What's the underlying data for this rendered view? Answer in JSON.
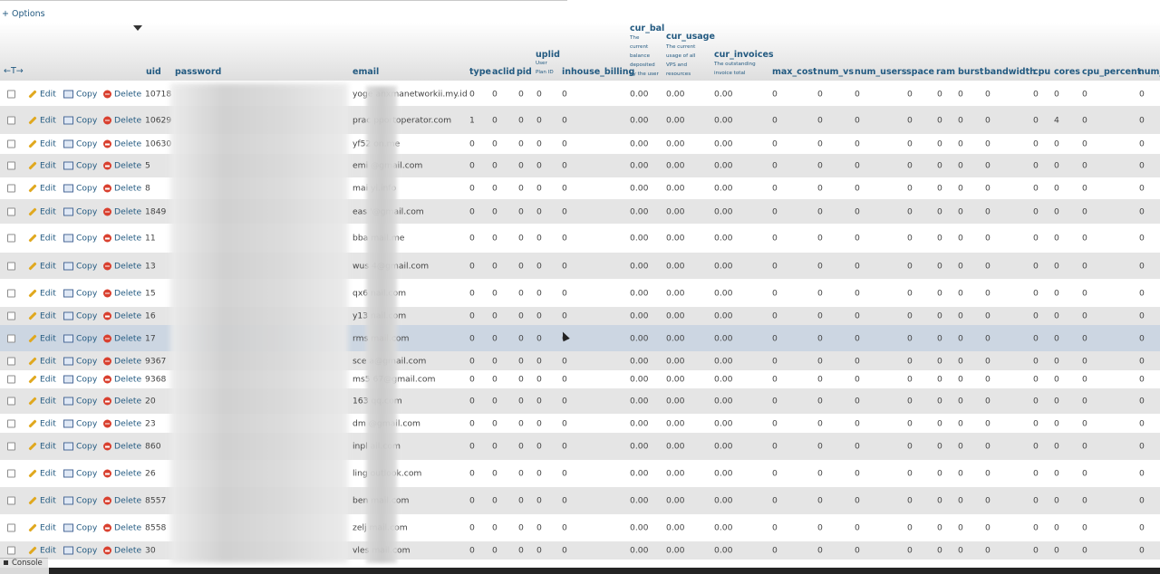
{
  "options_link": "+ Options",
  "headers": {
    "uid": "uid",
    "password": "password",
    "email": "email",
    "type": "type",
    "aclid": "aclid",
    "pid": "pid",
    "uplid": "uplid",
    "uplid_sub": [
      "User",
      "Plan ID"
    ],
    "inhouse_billing": "inhouse_billing",
    "cur_bal": "cur_bal",
    "cur_bal_sub": [
      "The",
      "current",
      "balance",
      "deposited",
      "by the user"
    ],
    "cur_usage": "cur_usage",
    "cur_usage_sub": [
      "The current",
      "usage of all",
      "VPS and",
      "resources"
    ],
    "cur_invoices": "cur_invoices",
    "cur_invoices_sub": [
      "The outstanding",
      "invoice total"
    ],
    "max_cost": "max_cost",
    "num_vs": "num_vs",
    "num_users": "num_users",
    "space": "space",
    "ram": "ram",
    "burst": "burst",
    "bandwidth": "bandwidth",
    "cpu": "cpu",
    "cores": "cores",
    "cpu_percent": "cpu_percent",
    "num_": "num_"
  },
  "actions": {
    "edit": "Edit",
    "copy": "Copy",
    "delete": "Delete"
  },
  "rows": [
    {
      "uid": "10718",
      "email": "yoge  anxmanetworkii.my.id",
      "type": "0",
      "aclid": "0",
      "pid": "0",
      "uplid": "0",
      "inhouse": "0",
      "cur_bal": "0.00",
      "cur_usage": "0.00",
      "cur_invoices": "0.00",
      "max_cost": "0",
      "num_vs": "0",
      "num_users": "0",
      "space": "0",
      "ram": "0",
      "burst": "0",
      "bandwidth": "0",
      "cpu": "0",
      "cores": "0",
      "cpu_percent": "0",
      "num_": "0"
    },
    {
      "uid": "10629",
      "email": "prac  pportoperator.com",
      "type": "1",
      "aclid": "0",
      "pid": "0",
      "uplid": "0",
      "inhouse": "0",
      "cur_bal": "0.00",
      "cur_usage": "0.00",
      "cur_invoices": "0.00",
      "max_cost": "0",
      "num_vs": "0",
      "num_users": "0",
      "space": "0",
      "ram": "0",
      "burst": "0",
      "bandwidth": "0",
      "cpu": "0",
      "cores": "4",
      "cpu_percent": "0",
      "num_": "0"
    },
    {
      "uid": "10630",
      "email": "yf52  on.me",
      "type": "0",
      "aclid": "0",
      "pid": "0",
      "uplid": "0",
      "inhouse": "0",
      "cur_bal": "0.00",
      "cur_usage": "0.00",
      "cur_invoices": "0.00",
      "max_cost": "0",
      "num_vs": "0",
      "num_users": "0",
      "space": "0",
      "ram": "0",
      "burst": "0",
      "bandwidth": "0",
      "cpu": "0",
      "cores": "0",
      "cpu_percent": "0",
      "num_": "0"
    },
    {
      "uid": "5",
      "email": "emi  @gmail.com",
      "type": "0",
      "aclid": "0",
      "pid": "0",
      "uplid": "0",
      "inhouse": "0",
      "cur_bal": "0.00",
      "cur_usage": "0.00",
      "cur_invoices": "0.00",
      "max_cost": "0",
      "num_vs": "0",
      "num_users": "0",
      "space": "0",
      "ram": "0",
      "burst": "0",
      "bandwidth": "0",
      "cpu": "0",
      "cores": "0",
      "cpu_percent": "0",
      "num_": "0"
    },
    {
      "uid": "8",
      "email": "mai  yi.info",
      "type": "0",
      "aclid": "0",
      "pid": "0",
      "uplid": "0",
      "inhouse": "0",
      "cur_bal": "0.00",
      "cur_usage": "0.00",
      "cur_invoices": "0.00",
      "max_cost": "0",
      "num_vs": "0",
      "num_users": "0",
      "space": "0",
      "ram": "0",
      "burst": "0",
      "bandwidth": "0",
      "cpu": "0",
      "cores": "0",
      "cpu_percent": "0",
      "num_": "0"
    },
    {
      "uid": "1849",
      "email": "eas  '@gmail.com",
      "type": "0",
      "aclid": "0",
      "pid": "0",
      "uplid": "0",
      "inhouse": "0",
      "cur_bal": "0.00",
      "cur_usage": "0.00",
      "cur_invoices": "0.00",
      "max_cost": "0",
      "num_vs": "0",
      "num_users": "0",
      "space": "0",
      "ram": "0",
      "burst": "0",
      "bandwidth": "0",
      "cpu": "0",
      "cores": "0",
      "cpu_percent": "0",
      "num_": "0"
    },
    {
      "uid": "11",
      "email": "bba  mail.me",
      "type": "0",
      "aclid": "0",
      "pid": "0",
      "uplid": "0",
      "inhouse": "0",
      "cur_bal": "0.00",
      "cur_usage": "0.00",
      "cur_invoices": "0.00",
      "max_cost": "0",
      "num_vs": "0",
      "num_users": "0",
      "space": "0",
      "ram": "0",
      "burst": "0",
      "bandwidth": "0",
      "cpu": "0",
      "cores": "0",
      "cpu_percent": "0",
      "num_": "0"
    },
    {
      "uid": "13",
      "email": "wus  4@gmail.com",
      "type": "0",
      "aclid": "0",
      "pid": "0",
      "uplid": "0",
      "inhouse": "0",
      "cur_bal": "0.00",
      "cur_usage": "0.00",
      "cur_invoices": "0.00",
      "max_cost": "0",
      "num_vs": "0",
      "num_users": "0",
      "space": "0",
      "ram": "0",
      "burst": "0",
      "bandwidth": "0",
      "cpu": "0",
      "cores": "0",
      "cpu_percent": "0",
      "num_": "0"
    },
    {
      "uid": "15",
      "email": "qx6  nail.com",
      "type": "0",
      "aclid": "0",
      "pid": "0",
      "uplid": "0",
      "inhouse": "0",
      "cur_bal": "0.00",
      "cur_usage": "0.00",
      "cur_invoices": "0.00",
      "max_cost": "0",
      "num_vs": "0",
      "num_users": "0",
      "space": "0",
      "ram": "0",
      "burst": "0",
      "bandwidth": "0",
      "cpu": "0",
      "cores": "0",
      "cpu_percent": "0",
      "num_": "0"
    },
    {
      "uid": "16",
      "email": "y13  nail.com",
      "type": "0",
      "aclid": "0",
      "pid": "0",
      "uplid": "0",
      "inhouse": "0",
      "cur_bal": "0.00",
      "cur_usage": "0.00",
      "cur_invoices": "0.00",
      "max_cost": "0",
      "num_vs": "0",
      "num_users": "0",
      "space": "0",
      "ram": "0",
      "burst": "0",
      "bandwidth": "0",
      "cpu": "0",
      "cores": "0",
      "cpu_percent": "0",
      "num_": "0"
    },
    {
      "uid": "17",
      "email": "rms  mail.com",
      "type": "0",
      "aclid": "0",
      "pid": "0",
      "uplid": "0",
      "inhouse": "0",
      "cur_bal": "0.00",
      "cur_usage": "0.00",
      "cur_invoices": "0.00",
      "max_cost": "0",
      "num_vs": "0",
      "num_users": "0",
      "space": "0",
      "ram": "0",
      "burst": "0",
      "bandwidth": "0",
      "cpu": "0",
      "cores": "0",
      "cpu_percent": "0",
      "num_": "0"
    },
    {
      "uid": "9367",
      "email": "sce  a@gmail.com",
      "type": "0",
      "aclid": "0",
      "pid": "0",
      "uplid": "0",
      "inhouse": "0",
      "cur_bal": "0.00",
      "cur_usage": "0.00",
      "cur_invoices": "0.00",
      "max_cost": "0",
      "num_vs": "0",
      "num_users": "0",
      "space": "0",
      "ram": "0",
      "burst": "0",
      "bandwidth": "0",
      "cpu": "0",
      "cores": "0",
      "cpu_percent": "0",
      "num_": "0"
    },
    {
      "uid": "9368",
      "email": "ms5  67@gmail.com",
      "type": "0",
      "aclid": "0",
      "pid": "0",
      "uplid": "0",
      "inhouse": "0",
      "cur_bal": "0.00",
      "cur_usage": "0.00",
      "cur_invoices": "0.00",
      "max_cost": "0",
      "num_vs": "0",
      "num_users": "0",
      "space": "0",
      "ram": "0",
      "burst": "0",
      "bandwidth": "0",
      "cpu": "0",
      "cores": "0",
      "cpu_percent": "0",
      "num_": "0"
    },
    {
      "uid": "20",
      "email": "163  qq.com",
      "type": "0",
      "aclid": "0",
      "pid": "0",
      "uplid": "0",
      "inhouse": "0",
      "cur_bal": "0.00",
      "cur_usage": "0.00",
      "cur_invoices": "0.00",
      "max_cost": "0",
      "num_vs": "0",
      "num_users": "0",
      "space": "0",
      "ram": "0",
      "burst": "0",
      "bandwidth": "0",
      "cpu": "0",
      "cores": "0",
      "cpu_percent": "0",
      "num_": "0"
    },
    {
      "uid": "23",
      "email": "dm  @gmail.com",
      "type": "0",
      "aclid": "0",
      "pid": "0",
      "uplid": "0",
      "inhouse": "0",
      "cur_bal": "0.00",
      "cur_usage": "0.00",
      "cur_invoices": "0.00",
      "max_cost": "0",
      "num_vs": "0",
      "num_users": "0",
      "space": "0",
      "ram": "0",
      "burst": "0",
      "bandwidth": "0",
      "cpu": "0",
      "cores": "0",
      "cpu_percent": "0",
      "num_": "0"
    },
    {
      "uid": "860",
      "email": "inpl  ail.com",
      "type": "0",
      "aclid": "0",
      "pid": "0",
      "uplid": "0",
      "inhouse": "0",
      "cur_bal": "0.00",
      "cur_usage": "0.00",
      "cur_invoices": "0.00",
      "max_cost": "0",
      "num_vs": "0",
      "num_users": "0",
      "space": "0",
      "ram": "0",
      "burst": "0",
      "bandwidth": "0",
      "cpu": "0",
      "cores": "0",
      "cpu_percent": "0",
      "num_": "0"
    },
    {
      "uid": "26",
      "email": "ling  outlook.com",
      "type": "0",
      "aclid": "0",
      "pid": "0",
      "uplid": "0",
      "inhouse": "0",
      "cur_bal": "0.00",
      "cur_usage": "0.00",
      "cur_invoices": "0.00",
      "max_cost": "0",
      "num_vs": "0",
      "num_users": "0",
      "space": "0",
      "ram": "0",
      "burst": "0",
      "bandwidth": "0",
      "cpu": "0",
      "cores": "0",
      "cpu_percent": "0",
      "num_": "0"
    },
    {
      "uid": "8557",
      "email": "ben  mail.com",
      "type": "0",
      "aclid": "0",
      "pid": "0",
      "uplid": "0",
      "inhouse": "0",
      "cur_bal": "0.00",
      "cur_usage": "0.00",
      "cur_invoices": "0.00",
      "max_cost": "0",
      "num_vs": "0",
      "num_users": "0",
      "space": "0",
      "ram": "0",
      "burst": "0",
      "bandwidth": "0",
      "cpu": "0",
      "cores": "0",
      "cpu_percent": "0",
      "num_": "0"
    },
    {
      "uid": "8558",
      "email": "zelj  mail.com",
      "type": "0",
      "aclid": "0",
      "pid": "0",
      "uplid": "0",
      "inhouse": "0",
      "cur_bal": "0.00",
      "cur_usage": "0.00",
      "cur_invoices": "0.00",
      "max_cost": "0",
      "num_vs": "0",
      "num_users": "0",
      "space": "0",
      "ram": "0",
      "burst": "0",
      "bandwidth": "0",
      "cpu": "0",
      "cores": "0",
      "cpu_percent": "0",
      "num_": "0"
    },
    {
      "uid": "30",
      "email": "vles  mail.com",
      "type": "0",
      "aclid": "0",
      "pid": "0",
      "uplid": "0",
      "inhouse": "0",
      "cur_bal": "0.00",
      "cur_usage": "0.00",
      "cur_invoices": "0.00",
      "max_cost": "0",
      "num_vs": "0",
      "num_users": "0",
      "space": "0",
      "ram": "0",
      "burst": "0",
      "bandwidth": "0",
      "cpu": "0",
      "cores": "0",
      "cpu_percent": "0",
      "num_": "0"
    }
  ],
  "console_label": "Console"
}
